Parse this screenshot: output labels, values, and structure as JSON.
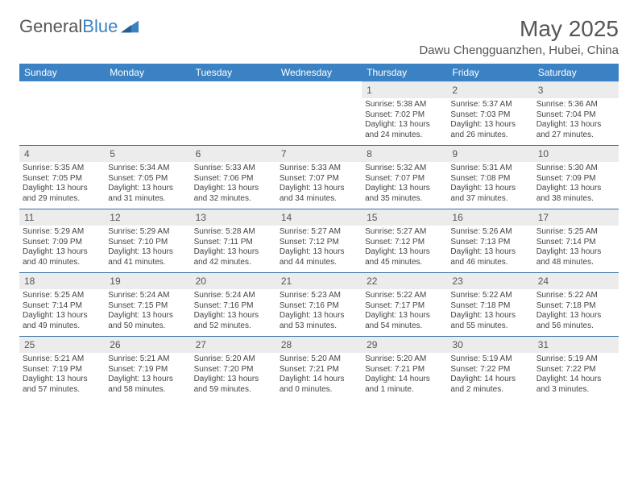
{
  "brand": {
    "part1": "General",
    "part2": "Blue"
  },
  "title": "May 2025",
  "location": "Dawu Chengguanzhen, Hubei, China",
  "colors": {
    "header_bg": "#3b82c4",
    "header_text": "#ffffff",
    "daynum_bg": "#ececec",
    "row_border": "#3b6fa0",
    "text": "#444444",
    "title_text": "#555555"
  },
  "weekdays": [
    "Sunday",
    "Monday",
    "Tuesday",
    "Wednesday",
    "Thursday",
    "Friday",
    "Saturday"
  ],
  "weeks": [
    [
      null,
      null,
      null,
      null,
      {
        "d": "1",
        "sr": "5:38 AM",
        "ss": "7:02 PM",
        "dl": "13 hours and 24 minutes."
      },
      {
        "d": "2",
        "sr": "5:37 AM",
        "ss": "7:03 PM",
        "dl": "13 hours and 26 minutes."
      },
      {
        "d": "3",
        "sr": "5:36 AM",
        "ss": "7:04 PM",
        "dl": "13 hours and 27 minutes."
      }
    ],
    [
      {
        "d": "4",
        "sr": "5:35 AM",
        "ss": "7:05 PM",
        "dl": "13 hours and 29 minutes."
      },
      {
        "d": "5",
        "sr": "5:34 AM",
        "ss": "7:05 PM",
        "dl": "13 hours and 31 minutes."
      },
      {
        "d": "6",
        "sr": "5:33 AM",
        "ss": "7:06 PM",
        "dl": "13 hours and 32 minutes."
      },
      {
        "d": "7",
        "sr": "5:33 AM",
        "ss": "7:07 PM",
        "dl": "13 hours and 34 minutes."
      },
      {
        "d": "8",
        "sr": "5:32 AM",
        "ss": "7:07 PM",
        "dl": "13 hours and 35 minutes."
      },
      {
        "d": "9",
        "sr": "5:31 AM",
        "ss": "7:08 PM",
        "dl": "13 hours and 37 minutes."
      },
      {
        "d": "10",
        "sr": "5:30 AM",
        "ss": "7:09 PM",
        "dl": "13 hours and 38 minutes."
      }
    ],
    [
      {
        "d": "11",
        "sr": "5:29 AM",
        "ss": "7:09 PM",
        "dl": "13 hours and 40 minutes."
      },
      {
        "d": "12",
        "sr": "5:29 AM",
        "ss": "7:10 PM",
        "dl": "13 hours and 41 minutes."
      },
      {
        "d": "13",
        "sr": "5:28 AM",
        "ss": "7:11 PM",
        "dl": "13 hours and 42 minutes."
      },
      {
        "d": "14",
        "sr": "5:27 AM",
        "ss": "7:12 PM",
        "dl": "13 hours and 44 minutes."
      },
      {
        "d": "15",
        "sr": "5:27 AM",
        "ss": "7:12 PM",
        "dl": "13 hours and 45 minutes."
      },
      {
        "d": "16",
        "sr": "5:26 AM",
        "ss": "7:13 PM",
        "dl": "13 hours and 46 minutes."
      },
      {
        "d": "17",
        "sr": "5:25 AM",
        "ss": "7:14 PM",
        "dl": "13 hours and 48 minutes."
      }
    ],
    [
      {
        "d": "18",
        "sr": "5:25 AM",
        "ss": "7:14 PM",
        "dl": "13 hours and 49 minutes."
      },
      {
        "d": "19",
        "sr": "5:24 AM",
        "ss": "7:15 PM",
        "dl": "13 hours and 50 minutes."
      },
      {
        "d": "20",
        "sr": "5:24 AM",
        "ss": "7:16 PM",
        "dl": "13 hours and 52 minutes."
      },
      {
        "d": "21",
        "sr": "5:23 AM",
        "ss": "7:16 PM",
        "dl": "13 hours and 53 minutes."
      },
      {
        "d": "22",
        "sr": "5:22 AM",
        "ss": "7:17 PM",
        "dl": "13 hours and 54 minutes."
      },
      {
        "d": "23",
        "sr": "5:22 AM",
        "ss": "7:18 PM",
        "dl": "13 hours and 55 minutes."
      },
      {
        "d": "24",
        "sr": "5:22 AM",
        "ss": "7:18 PM",
        "dl": "13 hours and 56 minutes."
      }
    ],
    [
      {
        "d": "25",
        "sr": "5:21 AM",
        "ss": "7:19 PM",
        "dl": "13 hours and 57 minutes."
      },
      {
        "d": "26",
        "sr": "5:21 AM",
        "ss": "7:19 PM",
        "dl": "13 hours and 58 minutes."
      },
      {
        "d": "27",
        "sr": "5:20 AM",
        "ss": "7:20 PM",
        "dl": "13 hours and 59 minutes."
      },
      {
        "d": "28",
        "sr": "5:20 AM",
        "ss": "7:21 PM",
        "dl": "14 hours and 0 minutes."
      },
      {
        "d": "29",
        "sr": "5:20 AM",
        "ss": "7:21 PM",
        "dl": "14 hours and 1 minute."
      },
      {
        "d": "30",
        "sr": "5:19 AM",
        "ss": "7:22 PM",
        "dl": "14 hours and 2 minutes."
      },
      {
        "d": "31",
        "sr": "5:19 AM",
        "ss": "7:22 PM",
        "dl": "14 hours and 3 minutes."
      }
    ]
  ],
  "labels": {
    "sunrise": "Sunrise: ",
    "sunset": "Sunset: ",
    "daylight": "Daylight: "
  }
}
